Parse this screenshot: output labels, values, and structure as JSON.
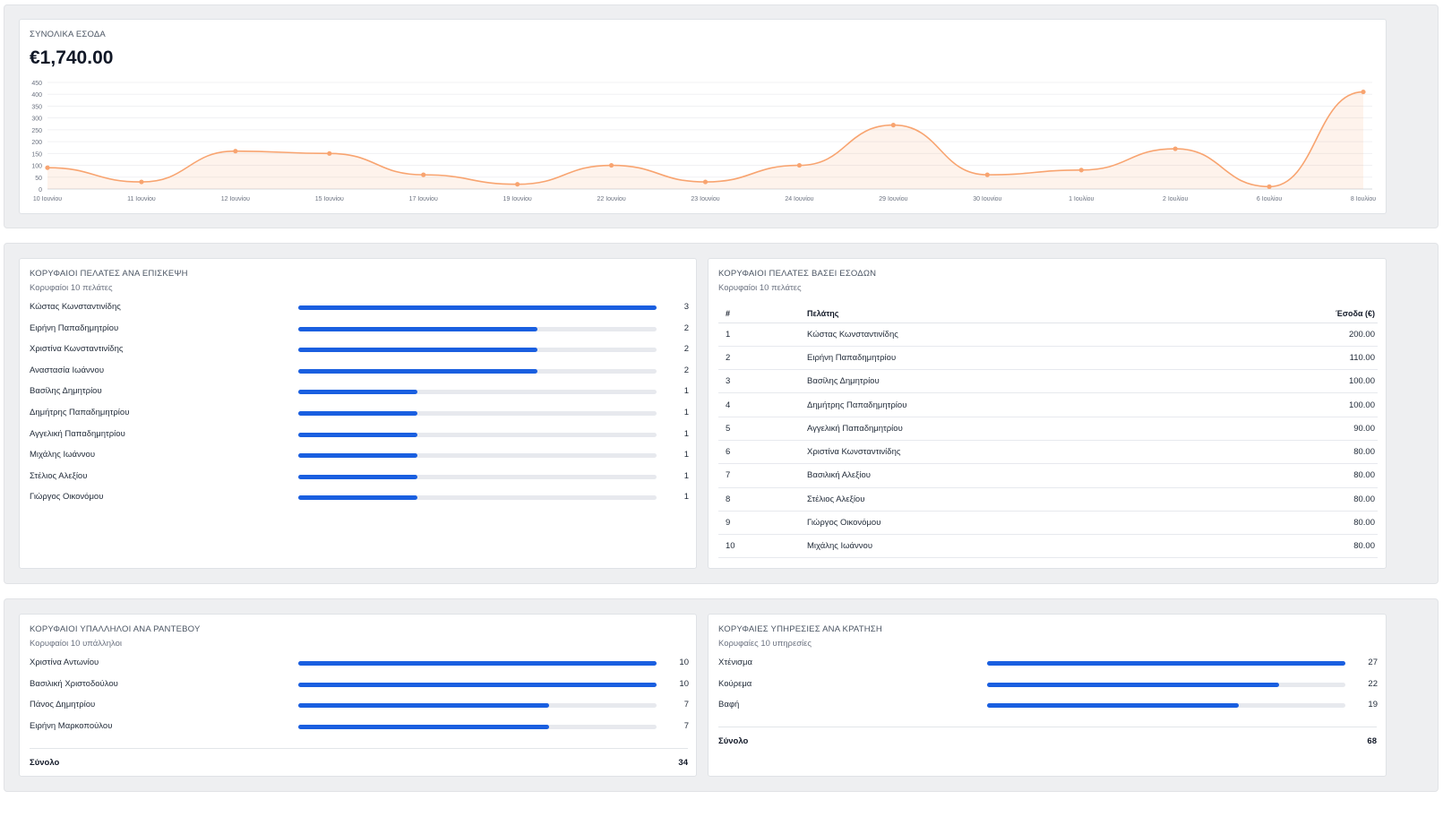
{
  "revenue": {
    "title": "ΣΥΝΟΛΙΚΑ ΕΣΟΔΑ",
    "total": "€1,740.00",
    "accent_color": "#f8a470",
    "chart_data": {
      "type": "area",
      "categories": [
        "10 Ιουνίου",
        "11 Ιουνίου",
        "12 Ιουνίου",
        "15 Ιουνίου",
        "17 Ιουνίου",
        "19 Ιουνίου",
        "22 Ιουνίου",
        "23 Ιουνίου",
        "24 Ιουνίου",
        "29 Ιουνίου",
        "30 Ιουνίου",
        "1 Ιουλίου",
        "2 Ιουλίου",
        "6 Ιουλίου",
        "8 Ιουλίου"
      ],
      "values": [
        90,
        30,
        160,
        150,
        60,
        20,
        100,
        30,
        100,
        270,
        60,
        80,
        170,
        10,
        410
      ],
      "ylim": [
        0,
        450
      ],
      "yticks": [
        0,
        50,
        100,
        150,
        200,
        250,
        300,
        350,
        400,
        450
      ],
      "grid": true,
      "smooth": true
    }
  },
  "top_visits": {
    "title": "ΚΟΡΥΦΑΙΟΙ ΠΕΛΑΤΕΣ ΑΝΑ ΕΠΙΣΚΕΨΗ",
    "subtitle": "Κορυφαίοι 10 πελάτες",
    "max": 3,
    "items": [
      {
        "name": "Κώστας Κωνσταντινίδης",
        "value": 3
      },
      {
        "name": "Ειρήνη Παπαδημητρίου",
        "value": 2
      },
      {
        "name": "Χριστίνα Κωνσταντινίδης",
        "value": 2
      },
      {
        "name": "Αναστασία Ιωάννου",
        "value": 2
      },
      {
        "name": "Βασίλης Δημητρίου",
        "value": 1
      },
      {
        "name": "Δημήτρης Παπαδημητρίου",
        "value": 1
      },
      {
        "name": "Αγγελική Παπαδημητρίου",
        "value": 1
      },
      {
        "name": "Μιχάλης Ιωάννου",
        "value": 1
      },
      {
        "name": "Στέλιος Αλεξίου",
        "value": 1
      },
      {
        "name": "Γιώργος Οικονόμου",
        "value": 1
      }
    ]
  },
  "top_revenue": {
    "title": "ΚΟΡΥΦΑΙΟΙ ΠΕΛΑΤΕΣ ΒΑΣΕΙ ΕΣΟΔΩΝ",
    "subtitle": "Κορυφαίοι 10 πελάτες",
    "headers": {
      "idx": "#",
      "name": "Πελάτης",
      "revenue": "Έσοδα (€)"
    },
    "rows": [
      {
        "idx": "1",
        "name": "Κώστας Κωνσταντινίδης",
        "revenue": "200.00"
      },
      {
        "idx": "2",
        "name": "Ειρήνη Παπαδημητρίου",
        "revenue": "110.00"
      },
      {
        "idx": "3",
        "name": "Βασίλης Δημητρίου",
        "revenue": "100.00"
      },
      {
        "idx": "4",
        "name": "Δημήτρης Παπαδημητρίου",
        "revenue": "100.00"
      },
      {
        "idx": "5",
        "name": "Αγγελική Παπαδημητρίου",
        "revenue": "90.00"
      },
      {
        "idx": "6",
        "name": "Χριστίνα Κωνσταντινίδης",
        "revenue": "80.00"
      },
      {
        "idx": "7",
        "name": "Βασιλική Αλεξίου",
        "revenue": "80.00"
      },
      {
        "idx": "8",
        "name": "Στέλιος Αλεξίου",
        "revenue": "80.00"
      },
      {
        "idx": "9",
        "name": "Γιώργος Οικονόμου",
        "revenue": "80.00"
      },
      {
        "idx": "10",
        "name": "Μιχάλης Ιωάννου",
        "revenue": "80.00"
      }
    ]
  },
  "top_employees": {
    "title": "ΚΟΡΥΦΑΙΟΙ ΥΠΑΛΛΗΛΟΙ ΑΝΑ ΡΑΝΤΕΒΟΥ",
    "subtitle": "Κορυφαίοι 10 υπάλληλοι",
    "max": 10,
    "items": [
      {
        "name": "Χριστίνα Αντωνίου",
        "value": 10
      },
      {
        "name": "Βασιλική Χριστοδούλου",
        "value": 10
      },
      {
        "name": "Πάνος Δημητρίου",
        "value": 7
      },
      {
        "name": "Ειρήνη Μαρκοπούλου",
        "value": 7
      }
    ],
    "total_label": "Σύνολο",
    "total": "34"
  },
  "top_services": {
    "title": "ΚΟΡΥΦΑΙΕΣ ΥΠΗΡΕΣΙΕΣ ΑΝΑ ΚΡΑΤΗΣΗ",
    "subtitle": "Κορυφαίες 10 υπηρεσίες",
    "max": 27,
    "items": [
      {
        "name": "Χτένισμα",
        "value": 27
      },
      {
        "name": "Κούρεμα",
        "value": 22
      },
      {
        "name": "Βαφή",
        "value": 19
      }
    ],
    "total_label": "Σύνολο",
    "total": "68"
  }
}
